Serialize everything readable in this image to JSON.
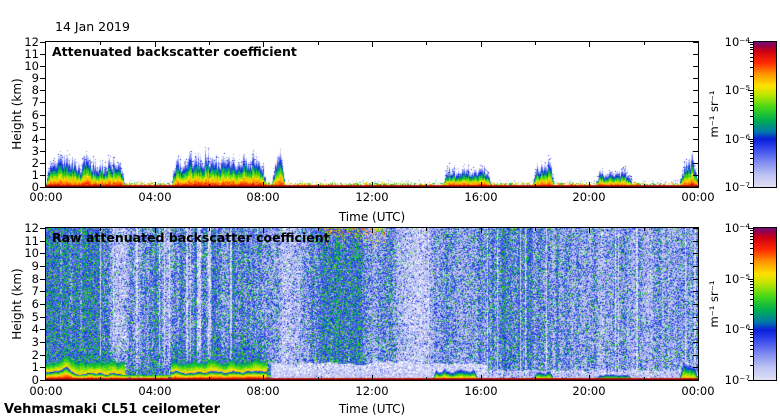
{
  "page": {
    "date_label": "14 Jan 2019",
    "footer": "Vehmasmaki CL51 ceilometer",
    "background": "#ffffff",
    "frame_color": "#000000"
  },
  "colormap": {
    "scale": "log10 backscatter, 1e-7 (bottom) to 1e-4 (top)",
    "stops": [
      [
        0.0,
        223,
        223,
        245
      ],
      [
        0.08,
        190,
        196,
        243
      ],
      [
        0.18,
        120,
        132,
        240
      ],
      [
        0.28,
        40,
        60,
        235
      ],
      [
        0.33,
        10,
        30,
        215
      ],
      [
        0.38,
        0,
        120,
        170
      ],
      [
        0.46,
        0,
        175,
        80
      ],
      [
        0.55,
        70,
        215,
        25
      ],
      [
        0.64,
        195,
        230,
        0
      ],
      [
        0.7,
        255,
        225,
        0
      ],
      [
        0.78,
        255,
        150,
        0
      ],
      [
        0.86,
        255,
        40,
        0
      ],
      [
        0.94,
        205,
        0,
        20
      ],
      [
        0.97,
        160,
        0,
        60
      ],
      [
        1.0,
        120,
        10,
        115
      ]
    ]
  },
  "chart_data": [
    {
      "id": "attenuated-backscatter",
      "type": "heatmap",
      "title": "Attenuated backscatter coefficient",
      "xlabel": "Time (UTC)",
      "ylabel": "Height (km)",
      "x_range_hours": [
        0,
        24
      ],
      "y_range_km": [
        0,
        12
      ],
      "x_tick_hours": [
        0,
        4,
        8,
        12,
        16,
        20,
        24
      ],
      "x_tick_labels": [
        "00:00",
        "04:00",
        "08:00",
        "12:00",
        "16:00",
        "20:00",
        "00:00"
      ],
      "x_minor_tick_hours": [
        2,
        6,
        10,
        14,
        18,
        22
      ],
      "y_tick_km": [
        0,
        1,
        2,
        3,
        4,
        5,
        6,
        7,
        8,
        9,
        10,
        11,
        12
      ],
      "y_tick_labels": [
        "0",
        "1",
        "2",
        "3",
        "4",
        "5",
        "6",
        "7",
        "8",
        "9",
        "10",
        "11",
        "12"
      ],
      "colorbar": {
        "unit": "m⁻¹ sr⁻¹",
        "tick_labels": [
          "10⁻⁴",
          "10⁻⁵",
          "10⁻⁶",
          "10⁻⁷"
        ],
        "tick_exponents": [
          -4,
          -5,
          -6,
          -7
        ],
        "min": 1e-07,
        "max": 0.0001
      },
      "model": {
        "seed": 7,
        "surface_km": 0.16,
        "plumes": [
          {
            "start": 0.0,
            "end": 2.9,
            "height_km": 2.6
          },
          {
            "start": 4.6,
            "end": 8.1,
            "height_km": 2.9
          },
          {
            "start": 8.3,
            "end": 8.8,
            "height_km": 3.0
          },
          {
            "start": 14.6,
            "end": 16.4,
            "height_km": 1.7
          },
          {
            "start": 17.9,
            "end": 18.7,
            "height_km": 2.6
          },
          {
            "start": 20.2,
            "end": 21.6,
            "height_km": 1.3
          },
          {
            "start": 23.3,
            "end": 24.0,
            "height_km": 2.8
          }
        ]
      }
    },
    {
      "id": "raw-attenuated-backscatter",
      "type": "heatmap",
      "title": "Raw attenuated backscatter coefficient",
      "xlabel": "Time (UTC)",
      "ylabel": "Height (km)",
      "x_range_hours": [
        0,
        24
      ],
      "y_range_km": [
        0,
        12
      ],
      "x_tick_hours": [
        0,
        4,
        8,
        12,
        16,
        20,
        24
      ],
      "x_tick_labels": [
        "00:00",
        "04:00",
        "08:00",
        "12:00",
        "16:00",
        "20:00",
        "00:00"
      ],
      "x_minor_tick_hours": [
        2,
        6,
        10,
        14,
        18,
        22
      ],
      "y_tick_km": [
        0,
        1,
        2,
        3,
        4,
        5,
        6,
        7,
        8,
        9,
        10,
        11,
        12
      ],
      "y_tick_labels": [
        "0",
        "1",
        "2",
        "3",
        "4",
        "5",
        "6",
        "7",
        "8",
        "9",
        "10",
        "11",
        "12"
      ],
      "colorbar": {
        "unit": "m⁻¹ sr⁻¹",
        "tick_labels": [
          "10⁻⁴",
          "10⁻⁵",
          "10⁻⁶",
          "10⁻⁷"
        ],
        "tick_exponents": [
          -4,
          -5,
          -6,
          -7
        ],
        "min": 1e-07,
        "max": 0.0001
      },
      "model": {
        "seed": 11,
        "noise_profile": [
          [
            0,
            0.92
          ],
          [
            0.8,
            0.88
          ],
          [
            1.6,
            0.8
          ],
          [
            2.2,
            0.72
          ],
          [
            2.55,
            0.25
          ],
          [
            2.8,
            0.18
          ],
          [
            3.1,
            0.5
          ],
          [
            3.6,
            0.62
          ],
          [
            4.2,
            0.55
          ],
          [
            4.45,
            0.28
          ],
          [
            4.7,
            0.55
          ],
          [
            5.5,
            0.65
          ],
          [
            6.3,
            0.6
          ],
          [
            7.0,
            0.62
          ],
          [
            7.8,
            0.55
          ],
          [
            8.4,
            0.5
          ],
          [
            8.8,
            0.22
          ],
          [
            9.2,
            0.25
          ],
          [
            9.7,
            0.6
          ],
          [
            10.2,
            0.8
          ],
          [
            10.8,
            0.88
          ],
          [
            11.4,
            0.85
          ],
          [
            11.9,
            0.6
          ],
          [
            12.3,
            0.5
          ],
          [
            12.7,
            0.65
          ],
          [
            13.1,
            0.3
          ],
          [
            13.4,
            0.14
          ],
          [
            13.9,
            0.16
          ],
          [
            14.3,
            0.45
          ],
          [
            14.9,
            0.5
          ],
          [
            15.4,
            0.4
          ],
          [
            15.9,
            0.55
          ],
          [
            16.3,
            0.65
          ],
          [
            16.9,
            0.72
          ],
          [
            17.4,
            0.65
          ],
          [
            18.0,
            0.55
          ],
          [
            18.6,
            0.6
          ],
          [
            19.2,
            0.55
          ],
          [
            19.7,
            0.35
          ],
          [
            20.2,
            0.45
          ],
          [
            20.8,
            0.4
          ],
          [
            21.5,
            0.42
          ],
          [
            22.2,
            0.38
          ],
          [
            22.8,
            0.42
          ],
          [
            23.4,
            0.45
          ],
          [
            24,
            0.5
          ]
        ],
        "boundary_layer": {
          "end_hour": 8.25,
          "peak_hour": 0.75,
          "peak_extra_km": 0.55
        },
        "white_band": {
          "start": 8.25,
          "end": 16.2
        },
        "hotspot": {
          "start": 10.2,
          "end": 12.5,
          "base_km": 10.0
        },
        "bumps": [
          {
            "start": 14.2,
            "end": 15.9,
            "height_km": 1.1,
            "strength": 0.88
          },
          {
            "start": 17.9,
            "end": 18.7,
            "height_km": 0.9,
            "strength": 0.85
          },
          {
            "start": 20.2,
            "end": 21.6,
            "height_km": 0.6,
            "strength": 0.82
          },
          {
            "start": 23.3,
            "end": 24.0,
            "height_km": 1.8,
            "strength": 0.8
          }
        ]
      }
    }
  ]
}
